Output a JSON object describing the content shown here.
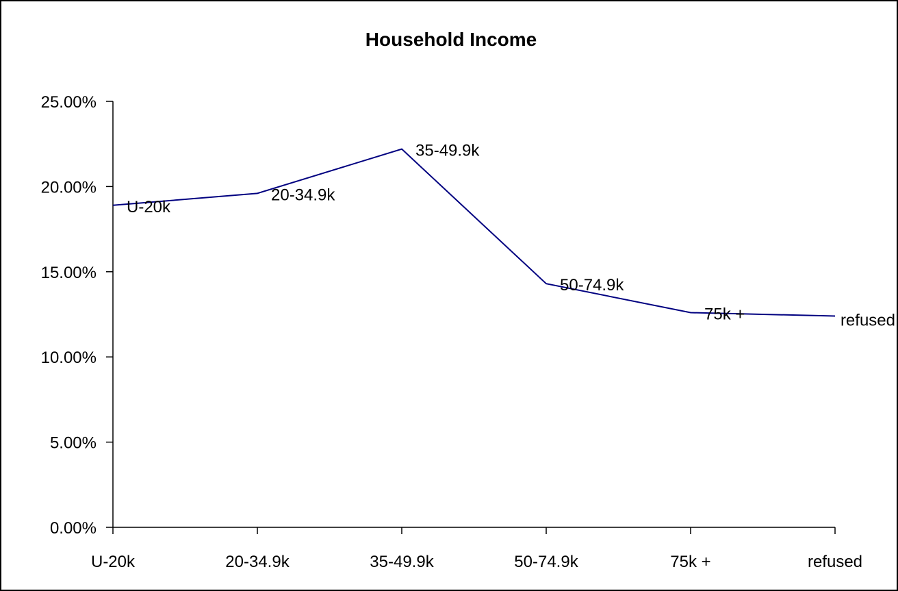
{
  "chart_data": {
    "type": "line",
    "title": "Household Income",
    "xlabel": "",
    "ylabel": "",
    "categories": [
      "U-20k",
      "20-34.9k",
      "35-49.9k",
      "50-74.9k",
      "75k +",
      "refused"
    ],
    "series": [
      {
        "values": [
          18.9,
          19.6,
          22.2,
          14.3,
          12.6,
          12.4
        ],
        "color": "#000080"
      }
    ],
    "data_labels": [
      "U-20k",
      "20-34.9k",
      "35-49.9k",
      "50-74.9k",
      "75k +",
      "refused"
    ],
    "y_ticks": [
      0,
      5,
      10,
      15,
      20,
      25
    ],
    "y_tick_labels": [
      "0.00%",
      "5.00%",
      "10.00%",
      "15.00%",
      "20.00%",
      "25.00%"
    ],
    "ylim": [
      0,
      25
    ],
    "grid": false,
    "legend": "none",
    "colors": {
      "line": "#000080",
      "axis": "#000000",
      "border": "#000000",
      "background": "#ffffff"
    }
  }
}
